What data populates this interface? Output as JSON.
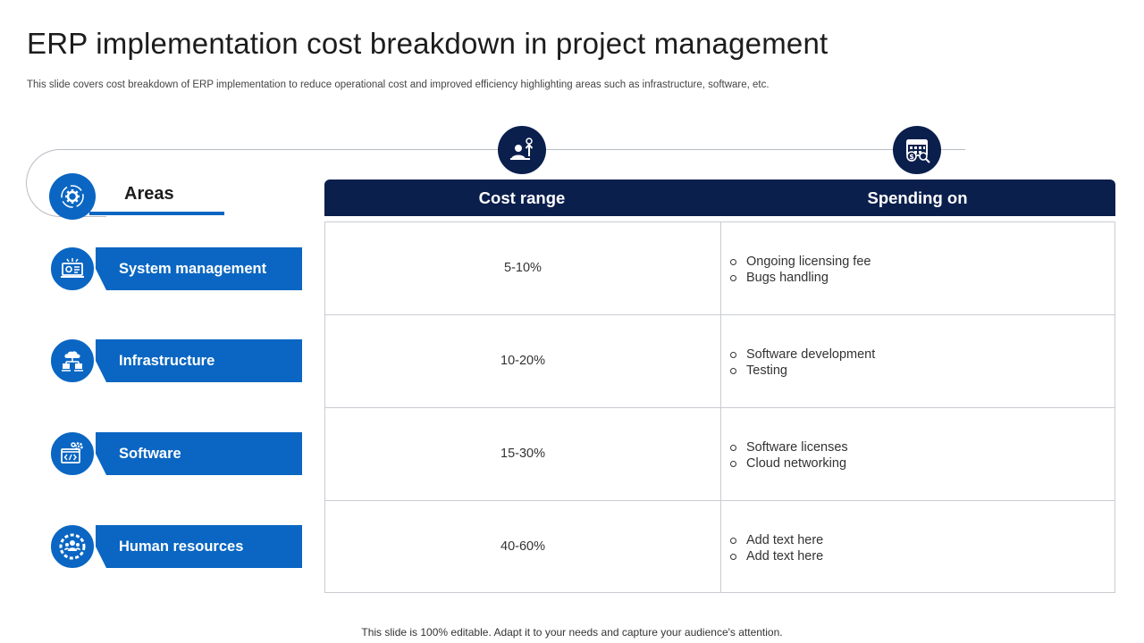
{
  "title": "ERP implementation cost breakdown in project management",
  "subtitle": "This slide covers cost breakdown of ERP implementation to reduce operational cost and improved efficiency highlighting areas such as infrastructure, software, etc.",
  "areas_heading": "Areas",
  "table_headers": {
    "cost_range": "Cost range",
    "spending_on": "Spending on"
  },
  "rows": [
    {
      "area": "System management",
      "icon": "system-monitor-icon",
      "cost": "5-10%",
      "spending": [
        "Ongoing licensing fee",
        "Bugs handling"
      ]
    },
    {
      "area": "Infrastructure",
      "icon": "network-cloud-icon",
      "cost": "10-20%",
      "spending": [
        "Software development",
        "Testing"
      ]
    },
    {
      "area": "Software",
      "icon": "code-settings-icon",
      "cost": "15-30%",
      "spending": [
        "Software licenses",
        "Cloud networking"
      ]
    },
    {
      "area": "Human resources",
      "icon": "team-gear-icon",
      "cost": "40-60%",
      "spending": [
        "Add text here",
        "Add text here"
      ]
    }
  ],
  "footer": "This slide is 100% editable. Adapt it to your needs and capture your audience's attention.",
  "colors": {
    "primary_blue": "#0a66c2",
    "navy": "#0b1f4d",
    "border": "#c9ccd1"
  }
}
